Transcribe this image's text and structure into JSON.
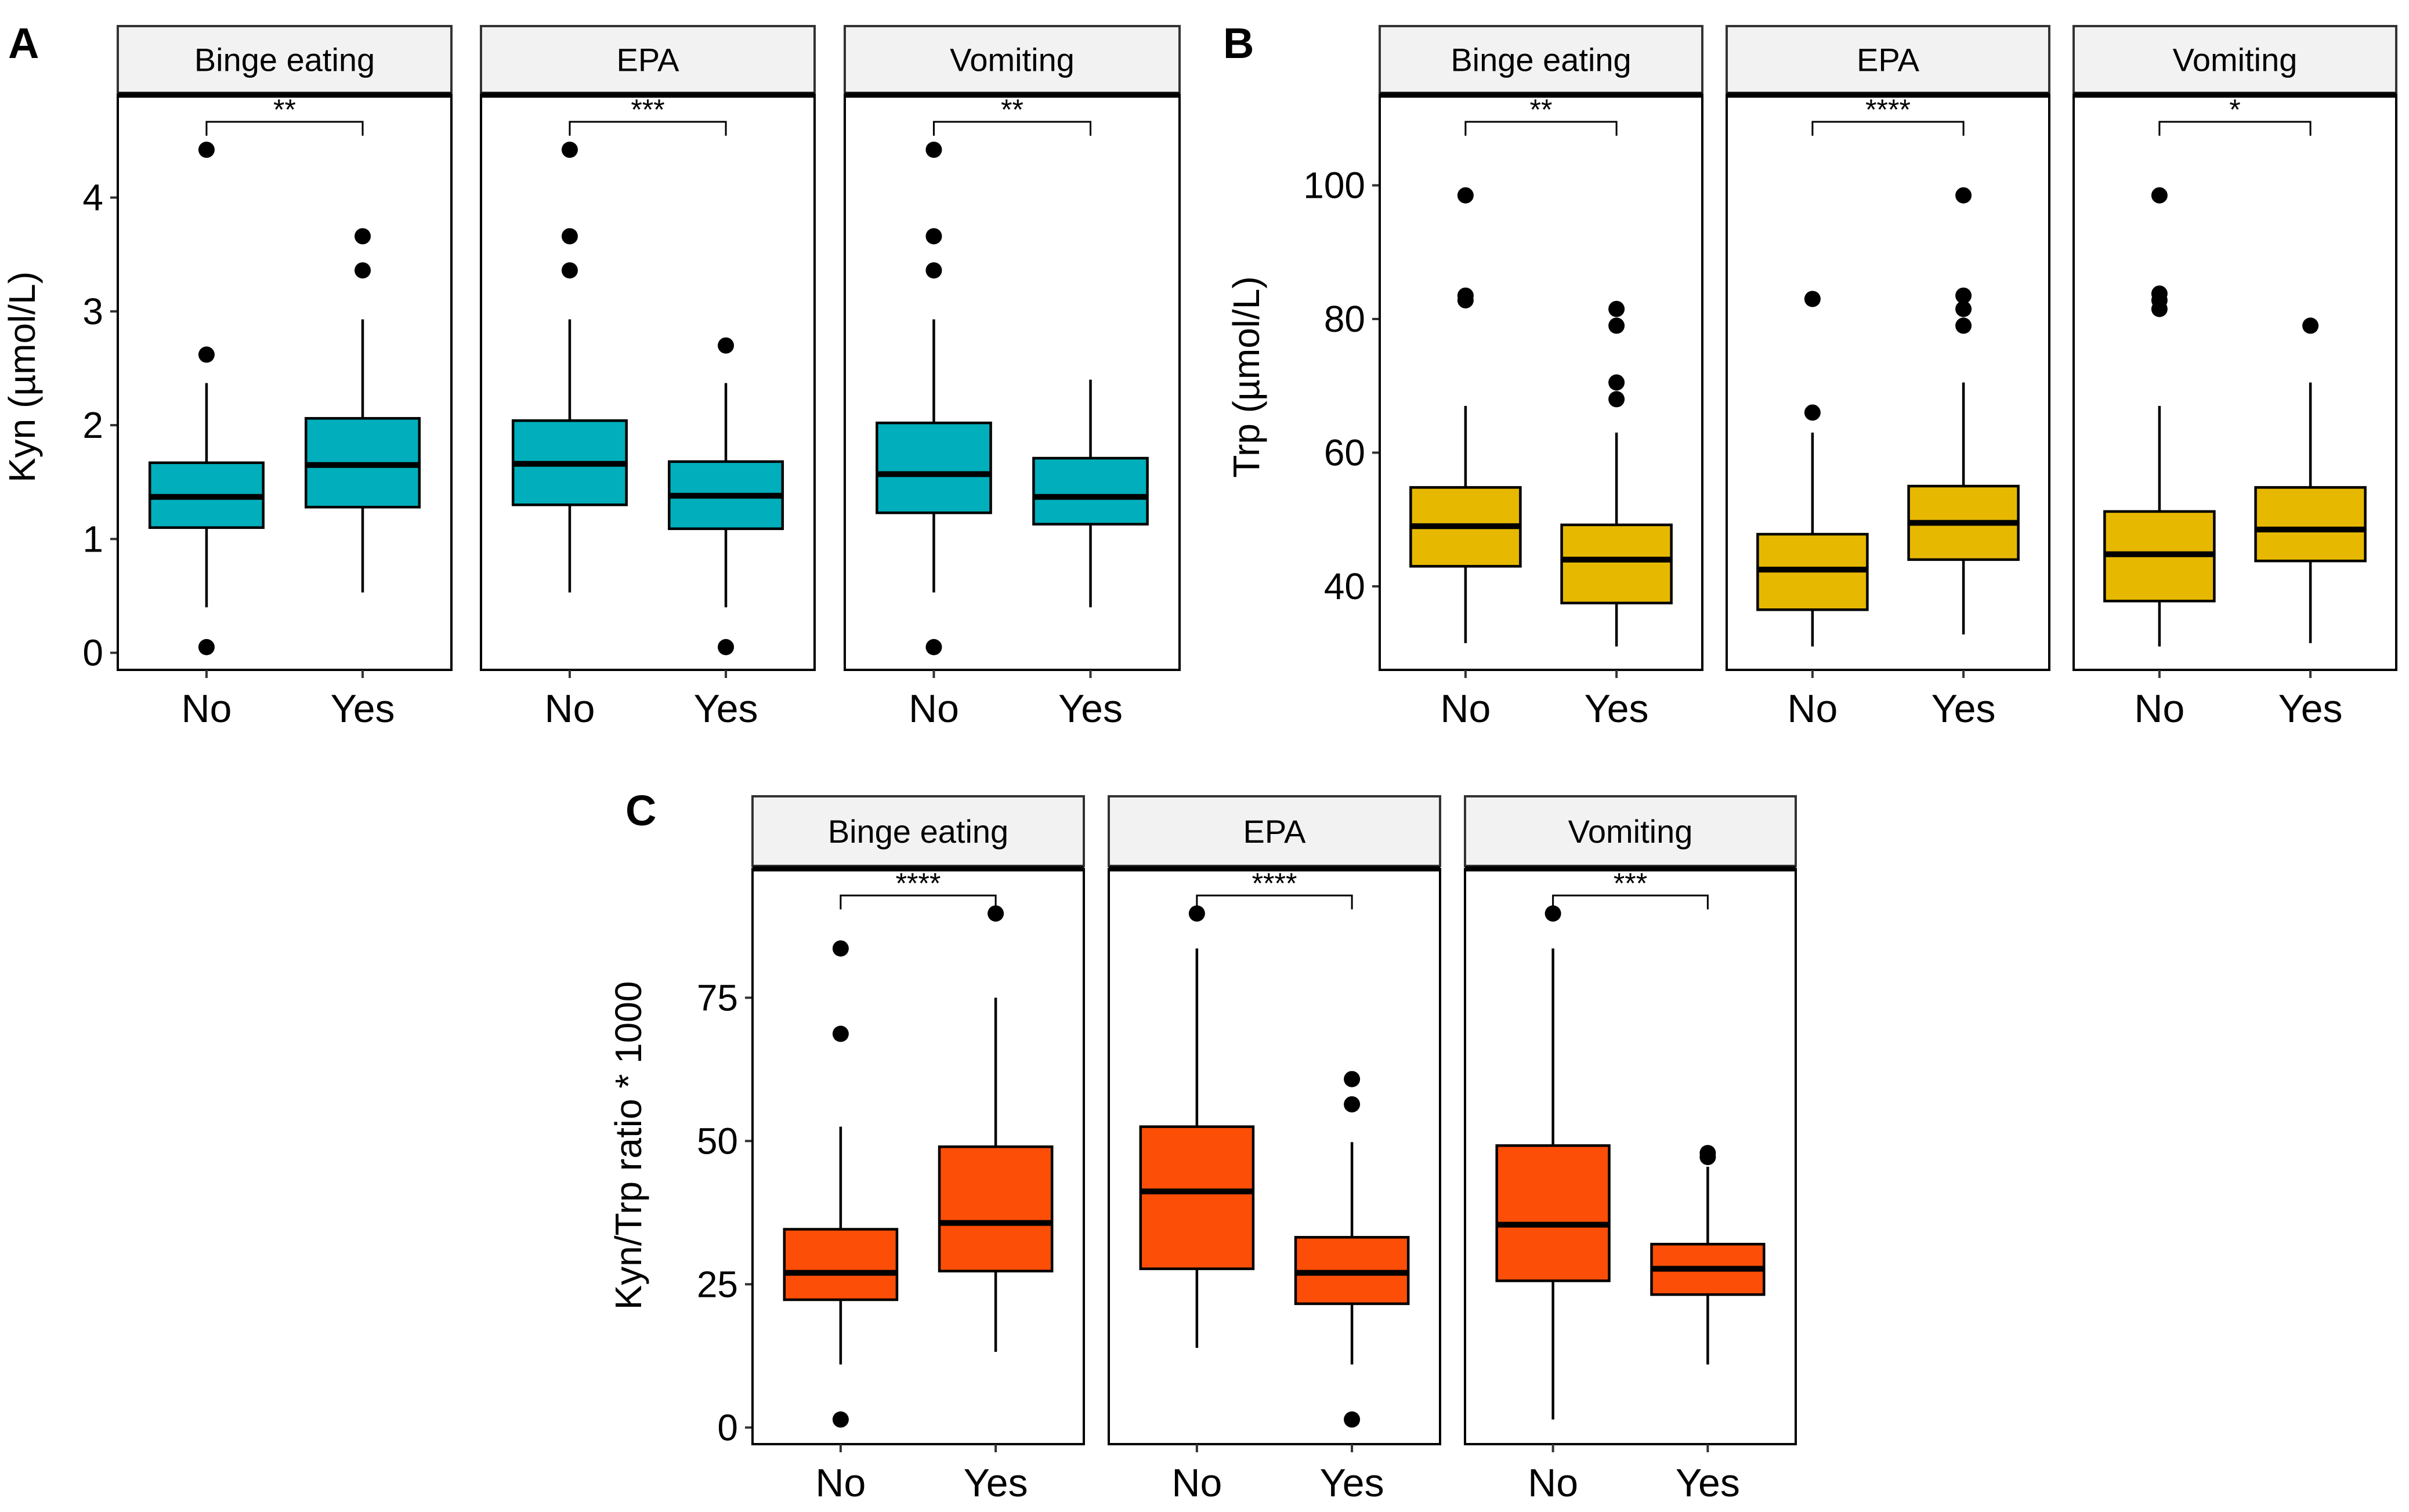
{
  "figure": {
    "panel_letters": [
      "A",
      "B",
      "C"
    ]
  },
  "chart_data": [
    {
      "panel": "A",
      "type": "boxplot",
      "ylabel": "Kyn (µmol/L)",
      "ylim": [
        -0.15,
        4.9
      ],
      "yticks": [
        0,
        1,
        2,
        3,
        4
      ],
      "fill_color": "#00AFBB",
      "categories": [
        "No",
        "Yes"
      ],
      "facets": [
        {
          "name": "Binge eating",
          "significance": "**",
          "boxes": [
            {
              "category": "No",
              "whisker_low": 0.4,
              "q1": 1.1,
              "median": 1.37,
              "q3": 1.67,
              "whisker_high": 2.37,
              "outliers": [
                4.42,
                2.62,
                0.05
              ]
            },
            {
              "category": "Yes",
              "whisker_low": 0.53,
              "q1": 1.28,
              "median": 1.65,
              "q3": 2.06,
              "whisker_high": 2.93,
              "outliers": [
                3.66,
                3.36
              ]
            }
          ]
        },
        {
          "name": "EPA",
          "significance": "***",
          "boxes": [
            {
              "category": "No",
              "whisker_low": 0.53,
              "q1": 1.3,
              "median": 1.66,
              "q3": 2.04,
              "whisker_high": 2.93,
              "outliers": [
                4.42,
                3.66,
                3.36
              ]
            },
            {
              "category": "Yes",
              "whisker_low": 0.4,
              "q1": 1.09,
              "median": 1.38,
              "q3": 1.68,
              "whisker_high": 2.37,
              "outliers": [
                2.7,
                0.05
              ]
            }
          ]
        },
        {
          "name": "Vomiting",
          "significance": "**",
          "boxes": [
            {
              "category": "No",
              "whisker_low": 0.53,
              "q1": 1.23,
              "median": 1.57,
              "q3": 2.02,
              "whisker_high": 2.93,
              "outliers": [
                4.42,
                3.66,
                3.36,
                0.05
              ]
            },
            {
              "category": "Yes",
              "whisker_low": 0.4,
              "q1": 1.13,
              "median": 1.37,
              "q3": 1.71,
              "whisker_high": 2.4,
              "outliers": []
            }
          ]
        }
      ]
    },
    {
      "panel": "B",
      "type": "boxplot",
      "ylabel": "Trp (µmol/L)",
      "ylim": [
        27.5,
        113.5
      ],
      "yticks": [
        40,
        60,
        80,
        100
      ],
      "fill_color": "#E7B800",
      "categories": [
        "No",
        "Yes"
      ],
      "facets": [
        {
          "name": "Binge eating",
          "significance": "**",
          "boxes": [
            {
              "category": "No",
              "whisker_low": 31.5,
              "q1": 43,
              "median": 49,
              "q3": 54.8,
              "whisker_high": 67,
              "outliers": [
                98.5,
                83.5,
                82.8
              ]
            },
            {
              "category": "Yes",
              "whisker_low": 31,
              "q1": 37.5,
              "median": 44,
              "q3": 49.2,
              "whisker_high": 63,
              "outliers": [
                81.5,
                79,
                70.5,
                68
              ]
            }
          ]
        },
        {
          "name": "EPA",
          "significance": "****",
          "boxes": [
            {
              "category": "No",
              "whisker_low": 31,
              "q1": 36.5,
              "median": 42.5,
              "q3": 47.8,
              "whisker_high": 63,
              "outliers": [
                83,
                66
              ]
            },
            {
              "category": "Yes",
              "whisker_low": 32.8,
              "q1": 44,
              "median": 49.5,
              "q3": 55,
              "whisker_high": 70.5,
              "outliers": [
                98.5,
                83.5,
                81.5,
                79
              ]
            }
          ]
        },
        {
          "name": "Vomiting",
          "significance": "*",
          "boxes": [
            {
              "category": "No",
              "whisker_low": 31,
              "q1": 37.8,
              "median": 44.8,
              "q3": 51.2,
              "whisker_high": 67,
              "outliers": [
                98.5,
                83.8,
                82.8,
                81.5
              ]
            },
            {
              "category": "Yes",
              "whisker_low": 31.5,
              "q1": 43.8,
              "median": 48.5,
              "q3": 54.8,
              "whisker_high": 70.5,
              "outliers": [
                79
              ]
            }
          ]
        }
      ]
    },
    {
      "panel": "C",
      "type": "boxplot",
      "ylabel": "Kyn/Trp ratio * 1000",
      "ylim": [
        -2.9,
        97.5
      ],
      "yticks": [
        0,
        25,
        50,
        75
      ],
      "fill_color": "#FC4E07",
      "categories": [
        "No",
        "Yes"
      ],
      "facets": [
        {
          "name": "Binge eating",
          "significance": "****",
          "boxes": [
            {
              "category": "No",
              "whisker_low": 11,
              "q1": 22.3,
              "median": 27,
              "q3": 34.6,
              "whisker_high": 52.5,
              "outliers": [
                83.6,
                68.7,
                1.4
              ]
            },
            {
              "category": "Yes",
              "whisker_low": 13.2,
              "q1": 27.3,
              "median": 35.7,
              "q3": 49,
              "whisker_high": 75,
              "outliers": [
                89.7
              ]
            }
          ]
        },
        {
          "name": "EPA",
          "significance": "****",
          "boxes": [
            {
              "category": "No",
              "whisker_low": 13.9,
              "q1": 27.7,
              "median": 41.2,
              "q3": 52.5,
              "whisker_high": 83.6,
              "outliers": [
                89.7
              ]
            },
            {
              "category": "Yes",
              "whisker_low": 11,
              "q1": 21.6,
              "median": 27,
              "q3": 33.2,
              "whisker_high": 49.8,
              "outliers": [
                60.8,
                56.4,
                1.4
              ]
            }
          ]
        },
        {
          "name": "Vomiting",
          "significance": "***",
          "boxes": [
            {
              "category": "No",
              "whisker_low": 1.4,
              "q1": 25.6,
              "median": 35.4,
              "q3": 49.2,
              "whisker_high": 83.6,
              "outliers": [
                89.7
              ]
            },
            {
              "category": "Yes",
              "whisker_low": 11,
              "q1": 23.2,
              "median": 27.7,
              "q3": 32,
              "whisker_high": 45.5,
              "outliers": [
                47.9,
                47.2
              ]
            }
          ]
        }
      ]
    }
  ]
}
